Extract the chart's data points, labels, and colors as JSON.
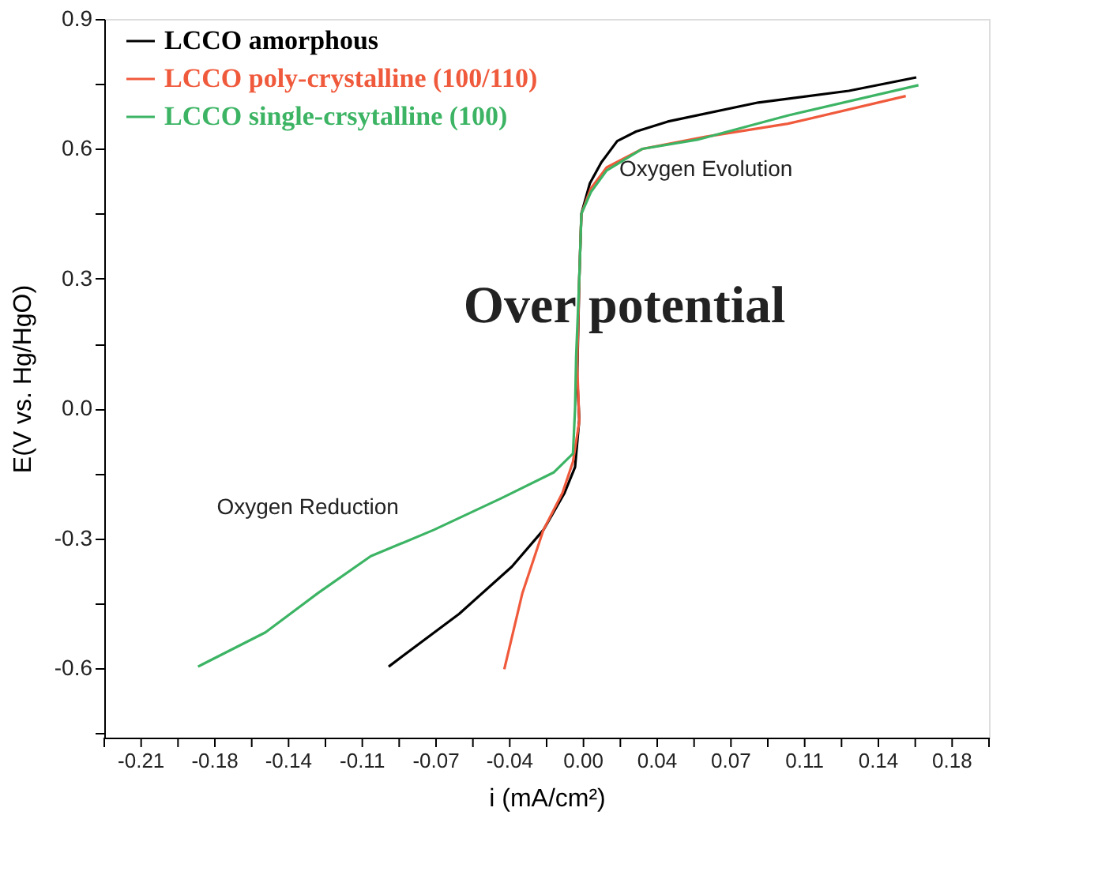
{
  "chart_data": {
    "type": "line",
    "xlabel": "i (mA/cm²)",
    "ylabel": "E(V vs. Hg/HgO)",
    "xlim": [
      -0.2275,
      0.1925
    ],
    "ylim": [
      -0.76,
      0.9
    ],
    "xticks": [
      {
        "value": -0.2275,
        "label": null
      },
      {
        "value": -0.21,
        "label": "-0.21"
      },
      {
        "value": -0.1925,
        "label": null
      },
      {
        "value": -0.175,
        "label": "-0.18"
      },
      {
        "value": -0.1575,
        "label": null
      },
      {
        "value": -0.14,
        "label": "-0.14"
      },
      {
        "value": -0.1225,
        "label": null
      },
      {
        "value": -0.105,
        "label": "-0.11"
      },
      {
        "value": -0.0875,
        "label": null
      },
      {
        "value": -0.07,
        "label": "-0.07"
      },
      {
        "value": -0.0525,
        "label": null
      },
      {
        "value": -0.035,
        "label": "-0.04"
      },
      {
        "value": -0.0175,
        "label": null
      },
      {
        "value": 0,
        "label": "0.00"
      },
      {
        "value": 0.0175,
        "label": null
      },
      {
        "value": 0.035,
        "label": "0.04"
      },
      {
        "value": 0.0525,
        "label": null
      },
      {
        "value": 0.07,
        "label": "0.07"
      },
      {
        "value": 0.0875,
        "label": null
      },
      {
        "value": 0.105,
        "label": "0.11"
      },
      {
        "value": 0.1225,
        "label": null
      },
      {
        "value": 0.14,
        "label": "0.14"
      },
      {
        "value": 0.1575,
        "label": null
      },
      {
        "value": 0.175,
        "label": "0.18"
      },
      {
        "value": 0.1925,
        "label": null
      }
    ],
    "yticks": [
      {
        "value": -0.75,
        "label": null
      },
      {
        "value": -0.6,
        "label": "-0.6"
      },
      {
        "value": -0.45,
        "label": null
      },
      {
        "value": -0.3,
        "label": "-0.3"
      },
      {
        "value": -0.15,
        "label": null
      },
      {
        "value": 0,
        "label": "0.0"
      },
      {
        "value": 0.15,
        "label": null
      },
      {
        "value": 0.3,
        "label": "0.3"
      },
      {
        "value": 0.45,
        "label": null
      },
      {
        "value": 0.6,
        "label": "0.6"
      },
      {
        "value": 0.75,
        "label": null
      },
      {
        "value": 0.9,
        "label": "0.9"
      }
    ],
    "grid": false,
    "legend": "top left",
    "marker": "none",
    "line_style": "solid",
    "annotations": [
      "Oxygen Evolution",
      "Over  potential",
      "Oxygen Reduction"
    ],
    "series": [
      {
        "name": "LCCO amorphous",
        "color": "#000000",
        "x": [
          -0.0925,
          -0.059,
          -0.034,
          -0.019,
          -0.009,
          -0.004,
          -0.002,
          -0.003,
          -0.002,
          -0.001,
          0.003,
          0.0085,
          0.016,
          0.025,
          0.04,
          0.083,
          0.126,
          0.158
        ],
        "values": [
          -0.596,
          -0.474,
          -0.365,
          -0.28,
          -0.195,
          -0.135,
          -0.025,
          0.073,
          0.3,
          0.45,
          0.52,
          0.569,
          0.618,
          0.64,
          0.663,
          0.707,
          0.734,
          0.765
        ]
      },
      {
        "name": "LCCO poly-crystalline (100/110)",
        "color": "#f05a3c",
        "x": [
          -0.0376,
          -0.029,
          -0.019,
          -0.01,
          -0.005,
          -0.002,
          -0.003,
          -0.002,
          -0.001,
          0.0035,
          0.011,
          0.028,
          0.058,
          0.097,
          0.153
        ],
        "values": [
          -0.602,
          -0.426,
          -0.28,
          -0.195,
          -0.123,
          -0.03,
          0.1,
          0.3,
          0.45,
          0.509,
          0.557,
          0.6,
          0.628,
          0.658,
          0.722
        ]
      },
      {
        "name": "LCCO single-crsytalline (100)",
        "color": "#3cb464",
        "x": [
          -0.183,
          -0.151,
          -0.126,
          -0.101,
          -0.071,
          -0.039,
          -0.014,
          -0.005,
          -0.004,
          -0.0035,
          -0.002,
          -0.001,
          0.0035,
          0.011,
          0.028,
          0.054,
          0.097,
          0.159
        ],
        "values": [
          -0.596,
          -0.517,
          -0.426,
          -0.341,
          -0.28,
          -0.207,
          -0.147,
          -0.104,
          0.0,
          0.12,
          0.3,
          0.45,
          0.5,
          0.55,
          0.6,
          0.621,
          0.677,
          0.747
        ]
      }
    ]
  }
}
